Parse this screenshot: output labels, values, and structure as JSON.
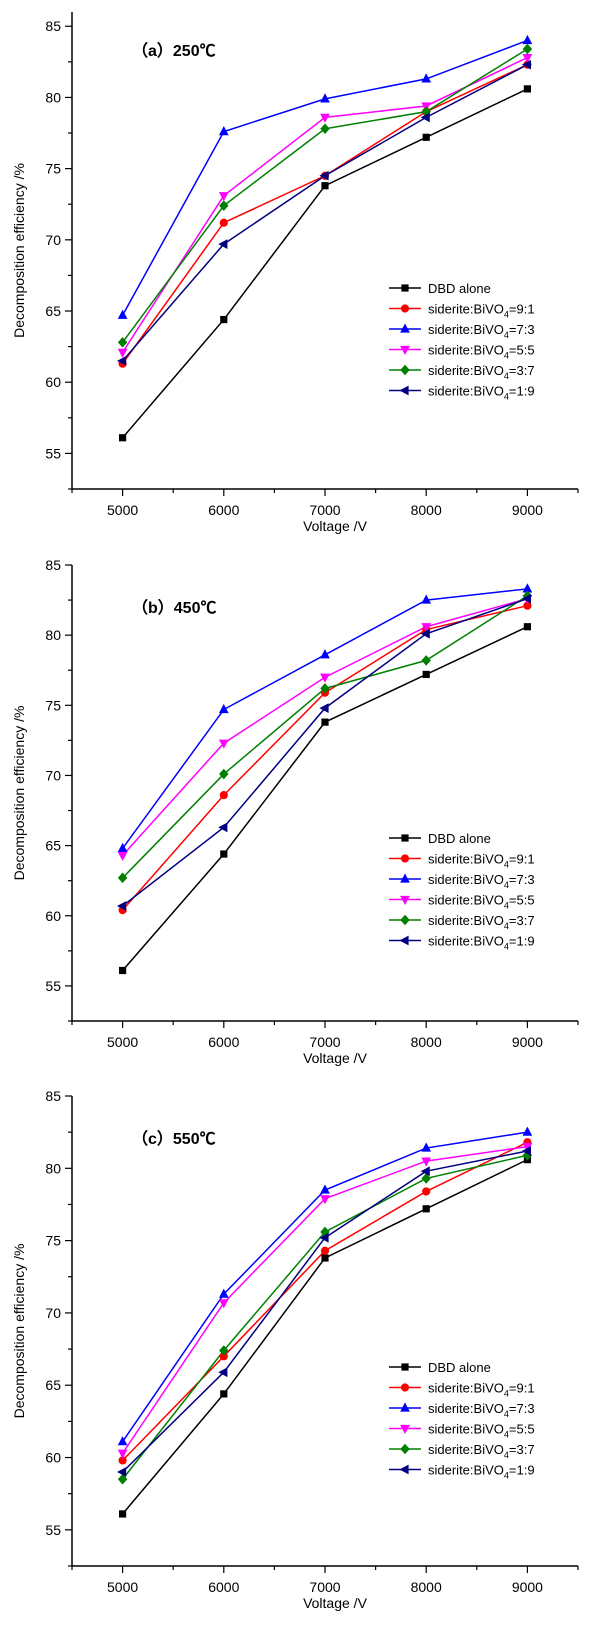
{
  "chart_data": [
    {
      "type": "line",
      "title": "（a）250℃",
      "xlabel": "Voltage /V",
      "ylabel": "Decomposition efficiency /%",
      "x": [
        5000,
        6000,
        7000,
        8000,
        9000
      ],
      "xlim": [
        4500,
        9500
      ],
      "ylim": [
        52.5,
        86
      ],
      "xticks": [
        5000,
        6000,
        7000,
        8000,
        9000
      ],
      "yticks": [
        55,
        60,
        65,
        70,
        75,
        80,
        85
      ],
      "legend_position": "lower-right",
      "grid": false,
      "series": [
        {
          "name": "DBD alone",
          "marker": "square",
          "color": "#000000",
          "values": [
            56.1,
            64.4,
            73.8,
            77.2,
            80.6
          ]
        },
        {
          "name": "siderite:BiVO4=9:1",
          "marker": "circle",
          "color": "#ff0000",
          "values": [
            61.3,
            71.2,
            74.5,
            79.0,
            82.3
          ]
        },
        {
          "name": "siderite:BiVO4=7:3",
          "marker": "triangle-up",
          "color": "#0000ff",
          "values": [
            64.7,
            77.6,
            79.9,
            81.3,
            84.0
          ]
        },
        {
          "name": "siderite:BiVO4=5:5",
          "marker": "triangle-down",
          "color": "#ff00ff",
          "values": [
            62.1,
            73.1,
            78.6,
            79.4,
            82.8
          ]
        },
        {
          "name": "siderite:BiVO4=3:7",
          "marker": "diamond",
          "color": "#008000",
          "values": [
            62.8,
            72.4,
            77.8,
            79.0,
            83.4
          ]
        },
        {
          "name": "siderite:BiVO4=1:9",
          "marker": "triangle-left",
          "color": "#000080",
          "values": [
            61.5,
            69.7,
            74.5,
            78.6,
            82.3
          ]
        }
      ]
    },
    {
      "type": "line",
      "title": "（b）450℃",
      "xlabel": "Voltage /V",
      "ylabel": "Decomposition efficiency /%",
      "x": [
        5000,
        6000,
        7000,
        8000,
        9000
      ],
      "xlim": [
        4500,
        9500
      ],
      "ylim": [
        52.5,
        85
      ],
      "xticks": [
        5000,
        6000,
        7000,
        8000,
        9000
      ],
      "yticks": [
        55,
        60,
        65,
        70,
        75,
        80,
        85
      ],
      "legend_position": "lower-right",
      "grid": false,
      "series": [
        {
          "name": "DBD alone",
          "marker": "square",
          "color": "#000000",
          "values": [
            56.1,
            64.4,
            73.8,
            77.2,
            80.6
          ]
        },
        {
          "name": "siderite:BiVO4=9:1",
          "marker": "circle",
          "color": "#ff0000",
          "values": [
            60.4,
            68.6,
            75.9,
            80.4,
            82.1
          ]
        },
        {
          "name": "siderite:BiVO4=7:3",
          "marker": "triangle-up",
          "color": "#0000ff",
          "values": [
            64.8,
            74.7,
            78.6,
            82.5,
            83.3
          ]
        },
        {
          "name": "siderite:BiVO4=5:5",
          "marker": "triangle-down",
          "color": "#ff00ff",
          "values": [
            64.3,
            72.3,
            77.0,
            80.6,
            82.6
          ]
        },
        {
          "name": "siderite:BiVO4=3:7",
          "marker": "diamond",
          "color": "#008000",
          "values": [
            62.7,
            70.1,
            76.2,
            78.2,
            82.8
          ]
        },
        {
          "name": "siderite:BiVO4=1:9",
          "marker": "triangle-left",
          "color": "#000080",
          "values": [
            60.7,
            66.3,
            74.8,
            80.1,
            82.6
          ]
        }
      ]
    },
    {
      "type": "line",
      "title": "（c）550℃",
      "xlabel": "Voltage /V",
      "ylabel": "Decomposition efficiency /%",
      "x": [
        5000,
        6000,
        7000,
        8000,
        9000
      ],
      "xlim": [
        4500,
        9500
      ],
      "ylim": [
        52.5,
        85
      ],
      "xticks": [
        5000,
        6000,
        7000,
        8000,
        9000
      ],
      "yticks": [
        55,
        60,
        65,
        70,
        75,
        80,
        85
      ],
      "legend_position": "lower-right",
      "grid": false,
      "series": [
        {
          "name": "DBD alone",
          "marker": "square",
          "color": "#000000",
          "values": [
            56.1,
            64.4,
            73.8,
            77.2,
            80.6
          ]
        },
        {
          "name": "siderite:BiVO4=9:1",
          "marker": "circle",
          "color": "#ff0000",
          "values": [
            59.8,
            67.0,
            74.3,
            78.4,
            81.8
          ]
        },
        {
          "name": "siderite:BiVO4=7:3",
          "marker": "triangle-up",
          "color": "#0000ff",
          "values": [
            61.1,
            71.3,
            78.5,
            81.4,
            82.5
          ]
        },
        {
          "name": "siderite:BiVO4=5:5",
          "marker": "triangle-down",
          "color": "#ff00ff",
          "values": [
            60.3,
            70.7,
            77.9,
            80.5,
            81.5
          ]
        },
        {
          "name": "siderite:BiVO4=3:7",
          "marker": "diamond",
          "color": "#008000",
          "values": [
            58.5,
            67.4,
            75.6,
            79.3,
            80.9
          ]
        },
        {
          "name": "siderite:BiVO4=1:9",
          "marker": "triangle-left",
          "color": "#000080",
          "values": [
            59.0,
            65.9,
            75.2,
            79.8,
            81.2
          ]
        }
      ]
    }
  ]
}
